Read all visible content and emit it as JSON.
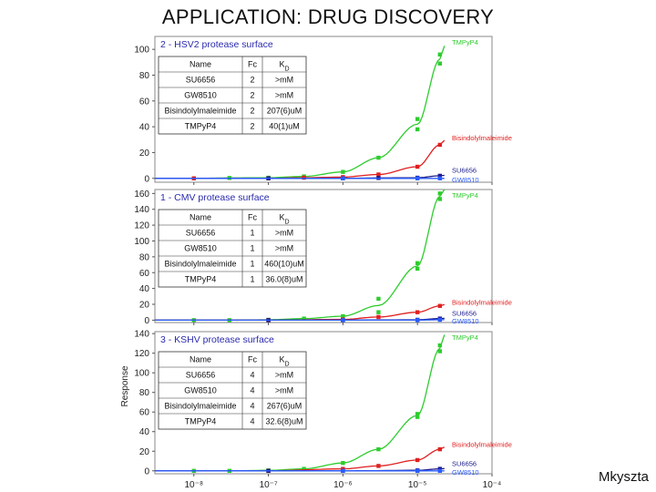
{
  "slide": {
    "title": "APPLICATION: DRUG DISCOVERY",
    "credit": "Mkyszta"
  },
  "colors": {
    "TMPyP4": "#2ecc2e",
    "Bisindolylmaleimide": "#e02020",
    "SU6656": "#1a1a8c",
    "GW8510": "#2a5cff",
    "panel_title": "#2b2bb0"
  },
  "chart_data": [
    {
      "type": "scatter",
      "title": "2 - HSV2 protease surface",
      "xscale": "log",
      "xlim": [
        3e-09,
        0.0001
      ],
      "ylim": [
        -3,
        110
      ],
      "yticks": [
        0,
        20,
        40,
        60,
        80,
        100
      ],
      "grid": false,
      "series": [
        {
          "name": "TMPyP4",
          "points": [
            [
              1e-08,
              0
            ],
            [
              3e-08,
              0.3
            ],
            [
              1e-07,
              0.5
            ],
            [
              3e-07,
              1.5
            ],
            [
              1e-06,
              5
            ],
            [
              3e-06,
              16
            ],
            [
              1e-05,
              46
            ],
            [
              1e-05,
              38
            ],
            [
              2e-05,
              89
            ],
            [
              2e-05,
              96
            ]
          ]
        },
        {
          "name": "Bisindolylmaleimide",
          "points": [
            [
              1e-08,
              0
            ],
            [
              1e-07,
              0
            ],
            [
              3e-07,
              0.5
            ],
            [
              1e-06,
              1
            ],
            [
              3e-06,
              3
            ],
            [
              1e-05,
              9
            ],
            [
              2e-05,
              26
            ]
          ]
        },
        {
          "name": "SU6656",
          "points": [
            [
              1e-07,
              0
            ],
            [
              1e-06,
              0
            ],
            [
              3e-06,
              0.3
            ],
            [
              1e-05,
              0.5
            ],
            [
              2e-05,
              2
            ]
          ]
        },
        {
          "name": "GW8510",
          "points": [
            [
              1e-06,
              0
            ],
            [
              1e-05,
              0
            ],
            [
              2e-05,
              0
            ]
          ]
        }
      ],
      "table": {
        "headers": [
          "Name",
          "Fc",
          "K_D"
        ],
        "rows": [
          [
            "SU6656",
            "2",
            ">mM"
          ],
          [
            "GW8510",
            "2",
            ">mM"
          ],
          [
            "Bisindolylmaleimide",
            "2",
            "207(6)uM"
          ],
          [
            "TMPyP4",
            "2",
            "40(1)uM"
          ]
        ]
      }
    },
    {
      "type": "scatter",
      "title": "1 - CMV protease surface",
      "xscale": "log",
      "xlim": [
        3e-09,
        0.0001
      ],
      "ylim": [
        -3,
        165
      ],
      "yticks": [
        0,
        20,
        40,
        60,
        80,
        100,
        120,
        140,
        160
      ],
      "grid": false,
      "series": [
        {
          "name": "TMPyP4",
          "points": [
            [
              1e-08,
              0
            ],
            [
              3e-08,
              0
            ],
            [
              1e-07,
              0.5
            ],
            [
              3e-07,
              2
            ],
            [
              1e-06,
              5
            ],
            [
              3e-06,
              10
            ],
            [
              3e-06,
              27
            ],
            [
              1e-05,
              72
            ],
            [
              1e-05,
              65
            ],
            [
              2e-05,
              153
            ],
            [
              2e-05,
              160
            ]
          ]
        },
        {
          "name": "Bisindolylmaleimide",
          "points": [
            [
              1e-07,
              0
            ],
            [
              1e-06,
              1
            ],
            [
              3e-06,
              4
            ],
            [
              1e-05,
              10
            ],
            [
              2e-05,
              18
            ]
          ]
        },
        {
          "name": "SU6656",
          "points": [
            [
              1e-07,
              0
            ],
            [
              1e-06,
              0
            ],
            [
              1e-05,
              0.5
            ],
            [
              2e-05,
              2
            ]
          ]
        },
        {
          "name": "GW8510",
          "points": [
            [
              1e-06,
              0
            ],
            [
              1e-05,
              0
            ],
            [
              2e-05,
              0.5
            ]
          ]
        }
      ],
      "table": {
        "headers": [
          "Name",
          "Fc",
          "K_D"
        ],
        "rows": [
          [
            "SU6656",
            "1",
            ">mM"
          ],
          [
            "GW8510",
            "1",
            ">mM"
          ],
          [
            "Bisindolylmaleimide",
            "1",
            "460(10)uM"
          ],
          [
            "TMPyP4",
            "1",
            "36.0(8)uM"
          ]
        ]
      }
    },
    {
      "type": "scatter",
      "title": "3 - KSHV protease surface",
      "xscale": "log",
      "xlim": [
        3e-09,
        0.0001
      ],
      "ylim": [
        -3,
        142
      ],
      "yticks": [
        0,
        20,
        40,
        60,
        80,
        100,
        120,
        140
      ],
      "xticks": [
        1e-08,
        1e-07,
        1e-06,
        1e-05,
        0.0001
      ],
      "xtick_labels": [
        "10⁻⁸",
        "10⁻⁷",
        "10⁻⁶",
        "10⁻⁵",
        "10⁻⁴"
      ],
      "ylabel": "Response",
      "grid": false,
      "series": [
        {
          "name": "TMPyP4",
          "points": [
            [
              1e-08,
              0
            ],
            [
              3e-08,
              0
            ],
            [
              1e-07,
              0.5
            ],
            [
              3e-07,
              2
            ],
            [
              1e-06,
              8
            ],
            [
              3e-06,
              22
            ],
            [
              1e-05,
              58
            ],
            [
              1e-05,
              55
            ],
            [
              2e-05,
              122
            ],
            [
              2e-05,
              128
            ]
          ]
        },
        {
          "name": "Bisindolylmaleimide",
          "points": [
            [
              1e-07,
              0
            ],
            [
              1e-06,
              2
            ],
            [
              3e-06,
              5
            ],
            [
              1e-05,
              11
            ],
            [
              2e-05,
              22
            ]
          ]
        },
        {
          "name": "SU6656",
          "points": [
            [
              1e-07,
              0
            ],
            [
              1e-06,
              0
            ],
            [
              1e-05,
              0.5
            ],
            [
              2e-05,
              2
            ]
          ]
        },
        {
          "name": "GW8510",
          "points": [
            [
              1e-06,
              0
            ],
            [
              1e-05,
              0
            ],
            [
              2e-05,
              0
            ]
          ]
        }
      ],
      "table": {
        "headers": [
          "Name",
          "Fc",
          "K_D"
        ],
        "rows": [
          [
            "SU6656",
            "4",
            ">mM"
          ],
          [
            "GW8510",
            "4",
            ">mM"
          ],
          [
            "Bisindolylmaleimide",
            "4",
            "267(6)uM"
          ],
          [
            "TMPyP4",
            "4",
            "32.6(8)uM"
          ]
        ]
      }
    }
  ]
}
